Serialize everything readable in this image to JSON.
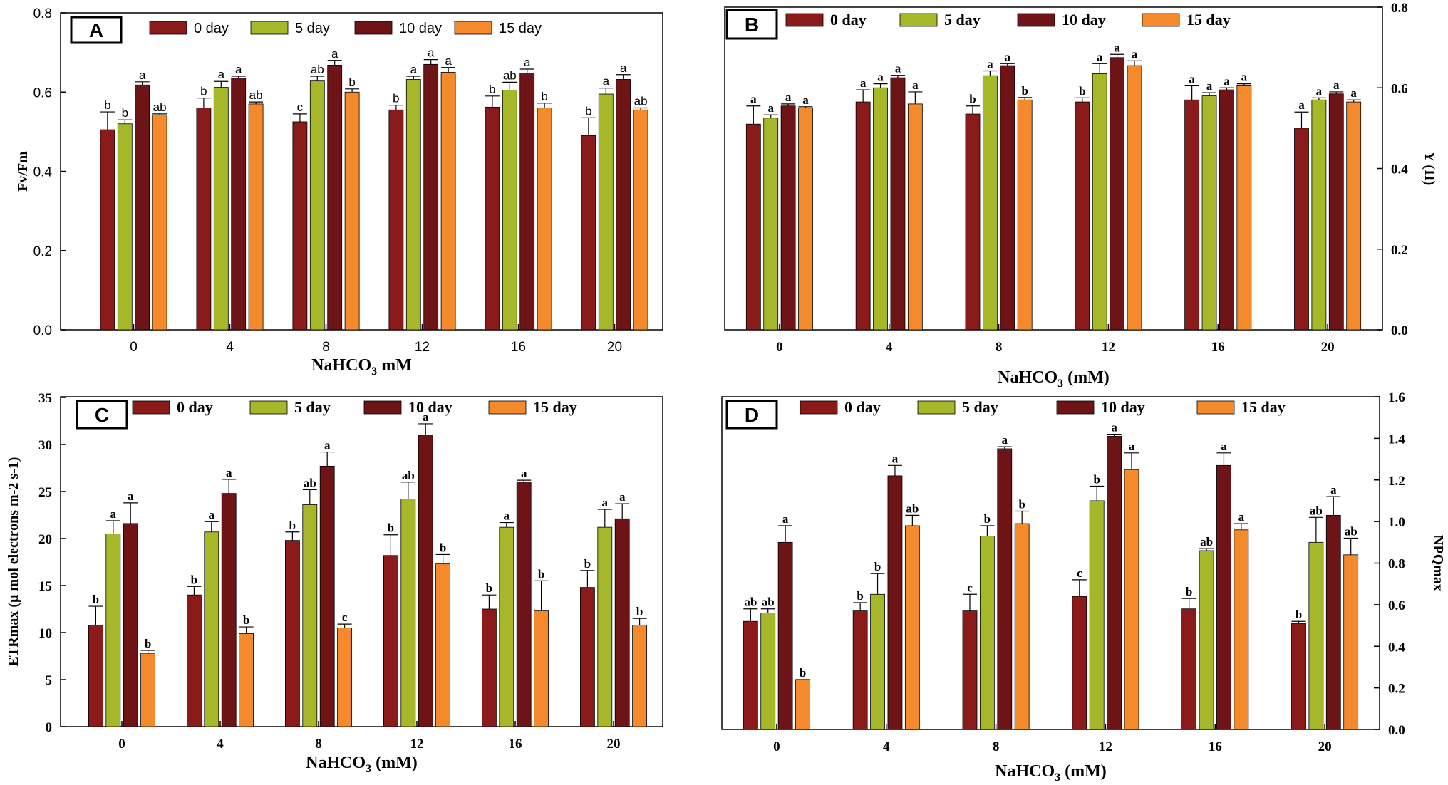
{
  "colors": {
    "day0": "#8b1a1a",
    "day5": "#a6b82a",
    "day10": "#6e1416",
    "day15": "#f58a2c",
    "axis": "#000000"
  },
  "chart_data": [
    {
      "panel_label": "A",
      "type": "bar",
      "categories": [
        "0",
        "4",
        "8",
        "12",
        "16",
        "20"
      ],
      "xlabel": "NaHCO3 mM",
      "ylabel": "Fv/Fm",
      "y_axis_side": "left",
      "ylim": [
        0,
        0.8
      ],
      "yticks": [
        "0.0",
        "0.2",
        "0.4",
        "0.6",
        "0.8"
      ],
      "legend": [
        "0 day",
        "5 day",
        "10 day",
        "15 day"
      ],
      "series": [
        {
          "name": "0 day",
          "values": [
            0.505,
            0.56,
            0.525,
            0.555,
            0.562,
            0.49
          ],
          "errors": [
            0.045,
            0.025,
            0.02,
            0.012,
            0.028,
            0.045
          ],
          "letters": [
            "b",
            "b",
            "c",
            "b",
            "b",
            "b"
          ]
        },
        {
          "name": "5 day",
          "values": [
            0.52,
            0.612,
            0.628,
            0.632,
            0.605,
            0.595
          ],
          "errors": [
            0.01,
            0.015,
            0.012,
            0.008,
            0.02,
            0.015
          ],
          "letters": [
            "b",
            "a",
            "ab",
            "a",
            "ab",
            "a"
          ]
        },
        {
          "name": "10 day",
          "values": [
            0.618,
            0.635,
            0.668,
            0.67,
            0.648,
            0.632
          ],
          "errors": [
            0.008,
            0.005,
            0.012,
            0.012,
            0.01,
            0.012
          ],
          "letters": [
            "a",
            "a",
            "a",
            "a",
            "a",
            "a"
          ]
        },
        {
          "name": "15 day",
          "values": [
            0.542,
            0.57,
            0.6,
            0.65,
            0.56,
            0.555
          ],
          "errors": [
            0.003,
            0.005,
            0.008,
            0.012,
            0.012,
            0.005
          ],
          "letters": [
            "ab",
            "ab",
            "b",
            "a",
            "b",
            "ab"
          ]
        }
      ]
    },
    {
      "panel_label": "B",
      "type": "bar",
      "categories": [
        "0",
        "4",
        "8",
        "12",
        "16",
        "20"
      ],
      "xlabel": "NaHCO3 (mM)",
      "ylabel": "Y (II)",
      "y_axis_side": "right",
      "ylim": [
        0,
        0.8
      ],
      "yticks": [
        "0.0",
        "0.2",
        "0.4",
        "0.6",
        "0.8"
      ],
      "legend": [
        "0 day",
        "5 day",
        "10 day",
        "15 day"
      ],
      "series": [
        {
          "name": "0 day",
          "values": [
            0.51,
            0.565,
            0.535,
            0.565,
            0.57,
            0.5
          ],
          "errors": [
            0.045,
            0.03,
            0.02,
            0.01,
            0.035,
            0.04
          ],
          "letters": [
            "a",
            "a",
            "b",
            "b",
            "a",
            "a"
          ]
        },
        {
          "name": "5 day",
          "values": [
            0.525,
            0.6,
            0.63,
            0.635,
            0.58,
            0.57
          ],
          "errors": [
            0.008,
            0.01,
            0.012,
            0.025,
            0.008,
            0.005
          ],
          "letters": [
            "a",
            "a",
            "a",
            "a",
            "a",
            "a"
          ]
        },
        {
          "name": "10 day",
          "values": [
            0.555,
            0.625,
            0.655,
            0.675,
            0.595,
            0.585
          ],
          "errors": [
            0.005,
            0.006,
            0.005,
            0.008,
            0.005,
            0.005
          ],
          "letters": [
            "a",
            "a",
            "a",
            "a",
            "a",
            "a"
          ]
        },
        {
          "name": "15 day",
          "values": [
            0.55,
            0.56,
            0.57,
            0.655,
            0.605,
            0.565
          ],
          "errors": [
            0.003,
            0.03,
            0.006,
            0.012,
            0.005,
            0.005
          ],
          "letters": [
            "a",
            "a",
            "b",
            "a",
            "a",
            "a"
          ]
        }
      ]
    },
    {
      "panel_label": "C",
      "type": "bar",
      "categories": [
        "0",
        "4",
        "8",
        "12",
        "16",
        "20"
      ],
      "xlabel": "NaHCO3 (mM)",
      "ylabel": "ETRmax (µ mol electrons m-2 s-1)",
      "y_axis_side": "left",
      "ylim": [
        0,
        35
      ],
      "yticks": [
        "0",
        "5",
        "10",
        "15",
        "20",
        "25",
        "30",
        "35"
      ],
      "legend": [
        "0 day",
        "5 day",
        "10 day",
        "15 day"
      ],
      "series": [
        {
          "name": "0 day",
          "values": [
            10.8,
            14.0,
            19.8,
            18.2,
            12.5,
            14.8
          ],
          "errors": [
            2.0,
            0.9,
            0.9,
            2.2,
            1.5,
            1.8
          ],
          "letters": [
            "b",
            "b",
            "b",
            "b",
            "b",
            "b"
          ]
        },
        {
          "name": "5 day",
          "values": [
            20.5,
            20.7,
            23.6,
            24.2,
            21.2,
            21.2
          ],
          "errors": [
            1.4,
            1.1,
            1.6,
            1.8,
            0.5,
            1.9
          ],
          "letters": [
            "a",
            "a",
            "ab",
            "ab",
            "a",
            "a"
          ]
        },
        {
          "name": "10 day",
          "values": [
            21.6,
            24.8,
            27.7,
            31.0,
            26.0,
            22.1
          ],
          "errors": [
            2.2,
            1.5,
            1.5,
            1.2,
            0.2,
            1.6
          ],
          "letters": [
            "a",
            "a",
            "a",
            "a",
            "a",
            "a"
          ]
        },
        {
          "name": "15 day",
          "values": [
            7.8,
            9.9,
            10.5,
            17.3,
            12.3,
            10.8
          ],
          "errors": [
            0.3,
            0.7,
            0.4,
            1.0,
            3.2,
            0.7
          ],
          "letters": [
            "b",
            "b",
            "c",
            "b",
            "b",
            "b"
          ]
        }
      ]
    },
    {
      "panel_label": "D",
      "type": "bar",
      "categories": [
        "0",
        "4",
        "8",
        "12",
        "16",
        "20"
      ],
      "xlabel": "NaHCO3 (mM)",
      "ylabel": "NPQmax",
      "y_axis_side": "right",
      "ylim": [
        0,
        1.6
      ],
      "yticks": [
        "0.0",
        "0.2",
        "0.4",
        "0.6",
        "0.8",
        "1.0",
        "1.2",
        "1.4",
        "1.6"
      ],
      "legend": [
        "0 day",
        "5 day",
        "10 day",
        "15 day"
      ],
      "series": [
        {
          "name": "0 day",
          "values": [
            0.52,
            0.57,
            0.57,
            0.64,
            0.58,
            0.51
          ],
          "errors": [
            0.06,
            0.04,
            0.08,
            0.08,
            0.05,
            0.01
          ],
          "letters": [
            "ab",
            "b",
            "c",
            "c",
            "b",
            "b"
          ]
        },
        {
          "name": "5 day",
          "values": [
            0.56,
            0.65,
            0.93,
            1.1,
            0.86,
            0.9
          ],
          "errors": [
            0.02,
            0.1,
            0.05,
            0.07,
            0.01,
            0.12
          ],
          "letters": [
            "ab",
            "b",
            "b",
            "b",
            "ab",
            "ab"
          ]
        },
        {
          "name": "10 day",
          "values": [
            0.9,
            1.22,
            1.35,
            1.41,
            1.27,
            1.03
          ],
          "errors": [
            0.08,
            0.05,
            0.01,
            0.01,
            0.06,
            0.09
          ],
          "letters": [
            "a",
            "a",
            "a",
            "a",
            "a",
            "a"
          ]
        },
        {
          "name": "15 day",
          "values": [
            0.24,
            0.98,
            0.99,
            1.25,
            0.96,
            0.84
          ],
          "errors": [
            0.0,
            0.05,
            0.06,
            0.08,
            0.03,
            0.08
          ],
          "letters": [
            "b",
            "ab",
            "b",
            "a",
            "a",
            "ab"
          ]
        }
      ]
    }
  ]
}
